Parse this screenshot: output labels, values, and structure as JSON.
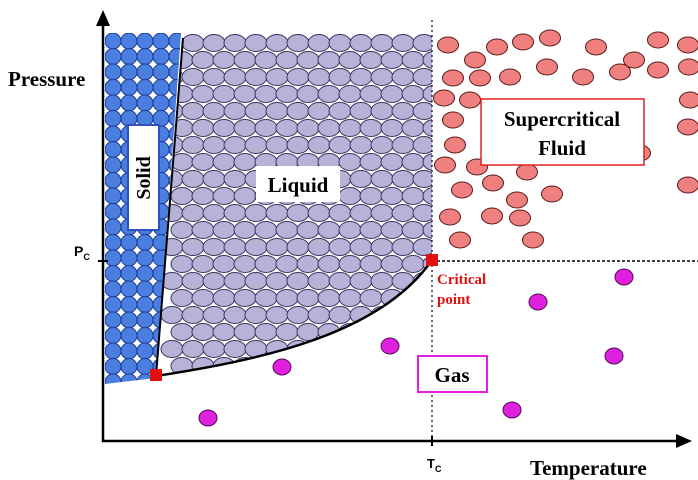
{
  "axes": {
    "y_label": "Pressure",
    "x_label": "Temperature",
    "pc": {
      "main": "P",
      "sub": "C"
    },
    "tc": {
      "main": "T",
      "sub": "C"
    }
  },
  "regions": {
    "solid": "Solid",
    "liquid": "Liquid",
    "supercritical": [
      "Supercritical",
      "Fluid"
    ],
    "gas": "Gas"
  },
  "critical_point": [
    "Critical",
    "point"
  ]
}
